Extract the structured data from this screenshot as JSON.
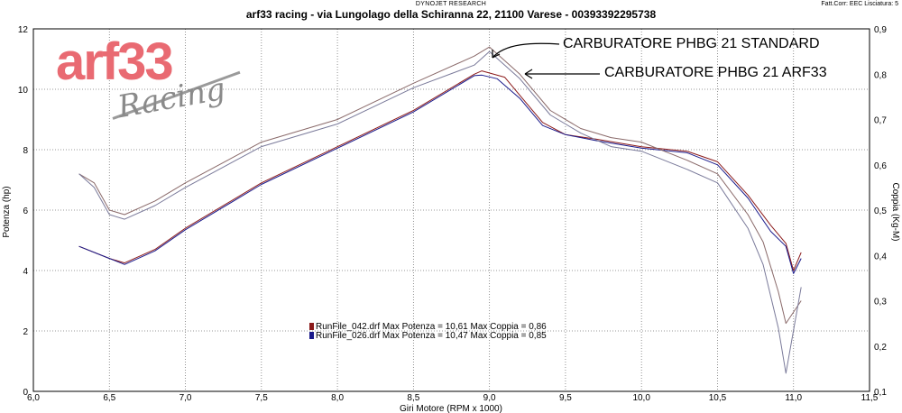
{
  "header": {
    "top": "DYNOJET RESEARCH",
    "corr": "Fatt.Corr: EEC  Lisciatura: 5",
    "title": "arf33 racing - via Lungolago della Schiranna 22, 21100 Varese - 00393392295738"
  },
  "logo": {
    "main": "arf33",
    "sub": "Racing"
  },
  "annotations": [
    {
      "text": "CARBURATORE PHBG 21 STANDARD"
    },
    {
      "text": "CARBURATORE PHBG 21 ARF33"
    }
  ],
  "legend": [
    {
      "text": "RunFile_042.drf Max Potenza = 10,61     Max Coppia = 0,86",
      "color": "#8b1a1a"
    },
    {
      "text": "RunFile_026.drf Max Potenza = 10,47     Max Coppia = 0,85",
      "color": "#1a1a8b"
    }
  ],
  "chart_data": {
    "type": "line",
    "xlabel": "Giri Motore (RPM x 1000)",
    "ylabel": "Potenza (hp)",
    "y2label": "Coppia (Kg-M)",
    "xlim": [
      6.0,
      11.5
    ],
    "ylim": [
      0,
      12
    ],
    "y2lim": [
      0.1,
      0.9
    ],
    "x_ticks": [
      "6,0",
      "6,5",
      "7,0",
      "7,5",
      "8,0",
      "8,5",
      "9,0",
      "9,5",
      "10,0",
      "10,5",
      "11,0",
      "11,5"
    ],
    "y_ticks": [
      "0",
      "2",
      "4",
      "6",
      "8",
      "10",
      "12"
    ],
    "y2_ticks": [
      "0,1",
      "0,2",
      "0,3",
      "0,4",
      "0,5",
      "0,6",
      "0,7",
      "0,8",
      "0,9"
    ],
    "grid": "dotted",
    "series": [
      {
        "name": "RunFile_042.drf",
        "measure": "Potenza",
        "color": "#8b1a1a",
        "x": [
          6.3,
          6.5,
          6.6,
          6.8,
          7.0,
          7.5,
          8.0,
          8.5,
          8.9,
          8.95,
          9.1,
          9.2,
          9.35,
          9.5,
          9.7,
          10.0,
          10.3,
          10.5,
          10.7,
          10.85,
          10.95,
          11.0,
          11.05
        ],
        "y": [
          4.8,
          4.4,
          4.25,
          4.7,
          5.4,
          6.9,
          8.1,
          9.3,
          10.5,
          10.61,
          10.4,
          9.8,
          8.9,
          8.5,
          8.35,
          8.1,
          7.95,
          7.6,
          6.5,
          5.5,
          4.9,
          4.0,
          4.6
        ]
      },
      {
        "name": "RunFile_026.drf",
        "measure": "Potenza",
        "color": "#1a1a8b",
        "x": [
          6.3,
          6.5,
          6.6,
          6.8,
          7.0,
          7.5,
          8.0,
          8.5,
          8.9,
          8.95,
          9.05,
          9.2,
          9.35,
          9.5,
          9.7,
          10.0,
          10.3,
          10.5,
          10.7,
          10.85,
          10.95,
          11.0,
          11.05
        ],
        "y": [
          4.8,
          4.4,
          4.2,
          4.65,
          5.35,
          6.85,
          8.05,
          9.25,
          10.45,
          10.47,
          10.35,
          9.7,
          8.8,
          8.5,
          8.3,
          8.05,
          7.9,
          7.5,
          6.4,
          5.3,
          4.8,
          3.9,
          4.4
        ]
      },
      {
        "name": "RunFile_042.drf",
        "measure": "Coppia",
        "color": "#8a6a6a",
        "x": [
          6.3,
          6.4,
          6.5,
          6.6,
          6.8,
          7.0,
          7.5,
          8.0,
          8.5,
          8.9,
          9.0,
          9.2,
          9.4,
          9.6,
          9.8,
          10.0,
          10.3,
          10.5,
          10.7,
          10.8,
          10.9,
          10.95,
          11.05
        ],
        "y": [
          0.58,
          0.56,
          0.5,
          0.49,
          0.52,
          0.56,
          0.65,
          0.7,
          0.78,
          0.84,
          0.86,
          0.8,
          0.72,
          0.68,
          0.66,
          0.65,
          0.61,
          0.58,
          0.49,
          0.43,
          0.32,
          0.25,
          0.3
        ]
      },
      {
        "name": "RunFile_026.drf",
        "measure": "Coppia",
        "color": "#7a7a9a",
        "x": [
          6.3,
          6.4,
          6.5,
          6.6,
          6.8,
          7.0,
          7.5,
          8.0,
          8.5,
          8.9,
          9.0,
          9.2,
          9.4,
          9.6,
          9.8,
          10.0,
          10.3,
          10.5,
          10.7,
          10.8,
          10.9,
          10.95,
          11.05
        ],
        "y": [
          0.58,
          0.55,
          0.49,
          0.48,
          0.51,
          0.55,
          0.64,
          0.69,
          0.77,
          0.82,
          0.85,
          0.79,
          0.71,
          0.67,
          0.64,
          0.63,
          0.59,
          0.56,
          0.46,
          0.38,
          0.24,
          0.14,
          0.33
        ]
      }
    ]
  }
}
